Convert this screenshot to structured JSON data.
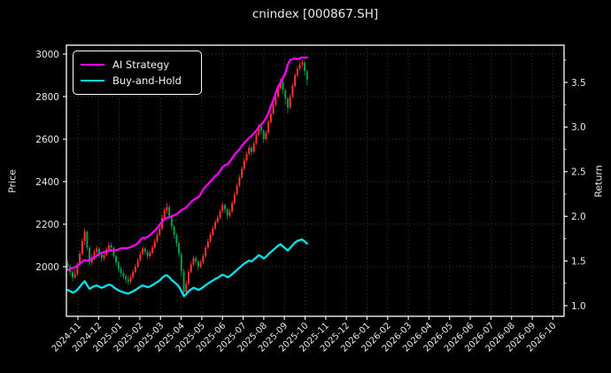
{
  "header": {
    "title": "cnindex [000867.SH]"
  },
  "legend": {
    "items": [
      {
        "label": "AI Strategy",
        "color": "#ff00ff"
      },
      {
        "label": "Buy-and-Hold",
        "color": "#00e5ee"
      }
    ]
  },
  "chart_data": {
    "type": "candlestick+line",
    "title": "cnindex [000867.SH]",
    "left_axis": {
      "label": "Price",
      "ticks": [
        2000,
        2200,
        2400,
        2600,
        2800,
        3000
      ],
      "range_shown": [
        1770,
        3040
      ],
      "grid": true
    },
    "right_axis": {
      "label": "Return",
      "ticks": [
        "1.0",
        "1.5",
        "2.0",
        "2.5",
        "3.0",
        "3.5"
      ],
      "range_shown": [
        0.88,
        3.92
      ],
      "grid": false
    },
    "x_axis": {
      "tick_labels": [
        "2024-11",
        "2024-12",
        "2025-01",
        "2025-02",
        "2025-03",
        "2025-04",
        "2025-05",
        "2025-06",
        "2025-07",
        "2025-08",
        "2025-09",
        "2025-10",
        "2025-11",
        "2025-12",
        "2026-01",
        "2026-02",
        "2026-03",
        "2026-04",
        "2026-05",
        "2026-06",
        "2026-07",
        "2026-08",
        "2026-09",
        "2026-10"
      ],
      "grid": true,
      "data_span_note": "candles/lines run from ~2024-10-20 to ~2025-11-05; rest of axis is empty"
    },
    "colors": {
      "up_candle": "#ff3333",
      "down_candle": "#00a04a",
      "ai": "#ff00ff",
      "buy_hold": "#00e5ee",
      "grid": "#8a8a8a",
      "spine": "#ffffff",
      "background": "#000000"
    },
    "legend_position": "upper-left",
    "candles_ohlc": [
      [
        2015,
        2030,
        1985,
        2000
      ],
      [
        2000,
        2010,
        1958,
        1975
      ],
      [
        1975,
        1985,
        1930,
        1950
      ],
      [
        1950,
        1990,
        1942,
        1965
      ],
      [
        1965,
        2022,
        1960,
        2010
      ],
      [
        2010,
        2075,
        2005,
        2060
      ],
      [
        2060,
        2135,
        2052,
        2120
      ],
      [
        2120,
        2180,
        2100,
        2165
      ],
      [
        2165,
        2170,
        2075,
        2090
      ],
      [
        2090,
        2095,
        2005,
        2020
      ],
      [
        2020,
        2060,
        2008,
        2045
      ],
      [
        2045,
        2082,
        2030,
        2070
      ],
      [
        2070,
        2098,
        2055,
        2085
      ],
      [
        2085,
        2092,
        2045,
        2060
      ],
      [
        2060,
        2068,
        2022,
        2040
      ],
      [
        2040,
        2070,
        2028,
        2055
      ],
      [
        2055,
        2092,
        2048,
        2080
      ],
      [
        2080,
        2115,
        2068,
        2100
      ],
      [
        2100,
        2112,
        2072,
        2090
      ],
      [
        2090,
        2095,
        2038,
        2050
      ],
      [
        2050,
        2058,
        2005,
        2020
      ],
      [
        2020,
        2028,
        1975,
        1990
      ],
      [
        1990,
        2000,
        1952,
        1970
      ],
      [
        1970,
        1982,
        1940,
        1955
      ],
      [
        1955,
        1965,
        1922,
        1940
      ],
      [
        1940,
        1958,
        1912,
        1930
      ],
      [
        1930,
        1962,
        1920,
        1950
      ],
      [
        1950,
        1988,
        1942,
        1975
      ],
      [
        1975,
        2012,
        1968,
        2000
      ],
      [
        2000,
        2042,
        1992,
        2030
      ],
      [
        2030,
        2072,
        2022,
        2060
      ],
      [
        2060,
        2098,
        2052,
        2085
      ],
      [
        2085,
        2092,
        2055,
        2070
      ],
      [
        2070,
        2078,
        2035,
        2050
      ],
      [
        2050,
        2078,
        2042,
        2065
      ],
      [
        2065,
        2102,
        2058,
        2090
      ],
      [
        2090,
        2132,
        2082,
        2120
      ],
      [
        2120,
        2162,
        2112,
        2150
      ],
      [
        2150,
        2195,
        2142,
        2180
      ],
      [
        2180,
        2245,
        2172,
        2230
      ],
      [
        2230,
        2278,
        2222,
        2265
      ],
      [
        2265,
        2300,
        2248,
        2280
      ],
      [
        2280,
        2288,
        2225,
        2240
      ],
      [
        2240,
        2248,
        2172,
        2190
      ],
      [
        2190,
        2198,
        2132,
        2150
      ],
      [
        2150,
        2158,
        2092,
        2110
      ],
      [
        2110,
        2118,
        2042,
        2060
      ],
      [
        2060,
        2068,
        1952,
        1980
      ],
      [
        1980,
        1990,
        1858,
        1880
      ],
      [
        1880,
        1935,
        1868,
        1920
      ],
      [
        1920,
        1988,
        1912,
        1975
      ],
      [
        1975,
        2025,
        1968,
        2010
      ],
      [
        2010,
        2052,
        2002,
        2040
      ],
      [
        2040,
        2048,
        2008,
        2025
      ],
      [
        2025,
        2032,
        1982,
        2000
      ],
      [
        2000,
        2032,
        1992,
        2020
      ],
      [
        2020,
        2062,
        2012,
        2050
      ],
      [
        2050,
        2102,
        2042,
        2090
      ],
      [
        2090,
        2132,
        2082,
        2120
      ],
      [
        2120,
        2162,
        2112,
        2150
      ],
      [
        2150,
        2192,
        2142,
        2180
      ],
      [
        2180,
        2222,
        2172,
        2210
      ],
      [
        2210,
        2242,
        2202,
        2230
      ],
      [
        2230,
        2272,
        2222,
        2260
      ],
      [
        2260,
        2302,
        2252,
        2290
      ],
      [
        2290,
        2296,
        2252,
        2270
      ],
      [
        2270,
        2278,
        2222,
        2240
      ],
      [
        2240,
        2272,
        2232,
        2260
      ],
      [
        2260,
        2312,
        2252,
        2300
      ],
      [
        2300,
        2352,
        2292,
        2340
      ],
      [
        2340,
        2392,
        2332,
        2380
      ],
      [
        2380,
        2432,
        2372,
        2420
      ],
      [
        2420,
        2472,
        2412,
        2460
      ],
      [
        2460,
        2512,
        2452,
        2500
      ],
      [
        2500,
        2542,
        2492,
        2530
      ],
      [
        2530,
        2572,
        2522,
        2560
      ],
      [
        2560,
        2568,
        2522,
        2540
      ],
      [
        2540,
        2592,
        2532,
        2580
      ],
      [
        2580,
        2632,
        2572,
        2620
      ],
      [
        2620,
        2672,
        2612,
        2660
      ],
      [
        2660,
        2668,
        2622,
        2640
      ],
      [
        2640,
        2648,
        2582,
        2600
      ],
      [
        2600,
        2642,
        2592,
        2630
      ],
      [
        2630,
        2692,
        2622,
        2680
      ],
      [
        2680,
        2732,
        2672,
        2720
      ],
      [
        2720,
        2772,
        2712,
        2760
      ],
      [
        2760,
        2812,
        2752,
        2800
      ],
      [
        2800,
        2852,
        2792,
        2840
      ],
      [
        2840,
        2885,
        2832,
        2870
      ],
      [
        2870,
        2878,
        2812,
        2830
      ],
      [
        2830,
        2838,
        2762,
        2790
      ],
      [
        2790,
        2798,
        2722,
        2750
      ],
      [
        2750,
        2812,
        2742,
        2800
      ],
      [
        2800,
        2862,
        2792,
        2850
      ],
      [
        2850,
        2912,
        2842,
        2900
      ],
      [
        2900,
        2945,
        2892,
        2930
      ],
      [
        2930,
        2965,
        2922,
        2950
      ],
      [
        2950,
        2972,
        2938,
        2960
      ],
      [
        2960,
        2968,
        2898,
        2920
      ],
      [
        2920,
        2928,
        2852,
        2880
      ]
    ],
    "series": [
      {
        "name": "AI Strategy",
        "axis": "return",
        "values": [
          1.4,
          1.412,
          1.422,
          1.43,
          1.448,
          1.47,
          1.492,
          1.51,
          1.505,
          1.512,
          1.525,
          1.54,
          1.558,
          1.58,
          1.592,
          1.6,
          1.608,
          1.615,
          1.62,
          1.618,
          1.622,
          1.63,
          1.64,
          1.645,
          1.642,
          1.648,
          1.655,
          1.668,
          1.68,
          1.7,
          1.735,
          1.76,
          1.758,
          1.77,
          1.79,
          1.815,
          1.84,
          1.87,
          1.905,
          1.94,
          1.965,
          1.985,
          1.99,
          2.0,
          2.01,
          2.025,
          2.045,
          2.07,
          2.085,
          2.1,
          2.13,
          2.16,
          2.185,
          2.2,
          2.215,
          2.25,
          2.3,
          2.33,
          2.36,
          2.39,
          2.42,
          2.45,
          2.47,
          2.51,
          2.55,
          2.57,
          2.58,
          2.61,
          2.65,
          2.69,
          2.72,
          2.75,
          2.79,
          2.82,
          2.85,
          2.88,
          2.9,
          2.93,
          2.96,
          3.0,
          3.03,
          3.06,
          3.1,
          3.16,
          3.23,
          3.3,
          3.38,
          3.45,
          3.5,
          3.55,
          3.6,
          3.7,
          3.75,
          3.76,
          3.77,
          3.76,
          3.77,
          3.78,
          3.775,
          3.78
        ]
      },
      {
        "name": "Buy-and-Hold",
        "axis": "return",
        "values": [
          1.176,
          1.162,
          1.147,
          1.156,
          1.182,
          1.212,
          1.247,
          1.274,
          1.229,
          1.188,
          1.203,
          1.218,
          1.226,
          1.212,
          1.2,
          1.209,
          1.224,
          1.235,
          1.229,
          1.206,
          1.188,
          1.171,
          1.159,
          1.15,
          1.141,
          1.135,
          1.147,
          1.162,
          1.176,
          1.194,
          1.212,
          1.226,
          1.218,
          1.206,
          1.215,
          1.229,
          1.247,
          1.265,
          1.282,
          1.312,
          1.332,
          1.341,
          1.318,
          1.288,
          1.265,
          1.241,
          1.212,
          1.165,
          1.106,
          1.129,
          1.162,
          1.182,
          1.2,
          1.191,
          1.176,
          1.188,
          1.206,
          1.229,
          1.247,
          1.265,
          1.282,
          1.3,
          1.312,
          1.329,
          1.347,
          1.335,
          1.318,
          1.329,
          1.353,
          1.376,
          1.4,
          1.424,
          1.447,
          1.471,
          1.488,
          1.506,
          1.494,
          1.518,
          1.541,
          1.565,
          1.553,
          1.529,
          1.547,
          1.576,
          1.6,
          1.624,
          1.647,
          1.671,
          1.688,
          1.665,
          1.641,
          1.618,
          1.647,
          1.676,
          1.706,
          1.724,
          1.735,
          1.741,
          1.718,
          1.694
        ]
      }
    ]
  }
}
